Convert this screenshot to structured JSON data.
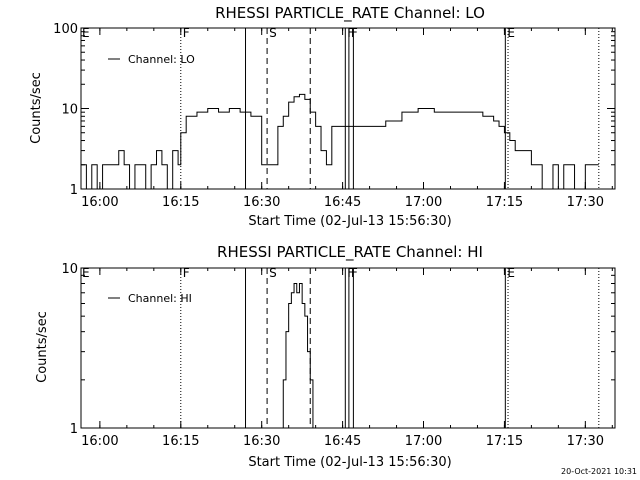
{
  "footer": {
    "timestamp": "20-Oct-2021 10:31"
  },
  "chart_data": [
    {
      "type": "line",
      "title": "RHESSI PARTICLE_RATE Channel: LO",
      "xlabel": "Start Time (02-Jul-13 15:56:30)",
      "ylabel": "Counts/sec",
      "yscale": "log",
      "ylim": [
        1,
        100
      ],
      "xlim": [
        "15:56:30",
        "17:35:30"
      ],
      "y_ticks": [
        "1",
        "10",
        "100"
      ],
      "x_ticks": [
        {
          "t": "16:00",
          "label": "16:00"
        },
        {
          "t": "16:15",
          "label": "16:15"
        },
        {
          "t": "16:30",
          "label": "16:30"
        },
        {
          "t": "16:45",
          "label": "16:45"
        },
        {
          "t": "17:00",
          "label": "17:00"
        },
        {
          "t": "17:15",
          "label": "17:15"
        },
        {
          "t": "17:30",
          "label": "17:30"
        }
      ],
      "legend": "top-left",
      "series": [
        {
          "name": "Channel: LO",
          "x": [
            "15:56:30",
            "15:57:30",
            "15:58:30",
            "15:59:30",
            "16:00:30",
            "16:01:30",
            "16:02:30",
            "16:03:30",
            "16:04:30",
            "16:05:30",
            "16:06:30",
            "16:07:30",
            "16:08:30",
            "16:09:30",
            "16:10:30",
            "16:11:30",
            "16:12:30",
            "16:13:30",
            "16:14:30",
            "16:15:00",
            "16:16:00",
            "16:18:00",
            "16:20:00",
            "16:22:00",
            "16:24:00",
            "16:26:00",
            "16:27:00",
            "16:28:00",
            "16:29:00",
            "16:30:00",
            "16:31:00",
            "16:32:00",
            "16:33:00",
            "16:34:00",
            "16:35:00",
            "16:36:00",
            "16:37:00",
            "16:38:00",
            "16:39:00",
            "16:40:00",
            "16:41:00",
            "16:42:00",
            "16:43:00",
            "16:45:00",
            "16:47:00",
            "16:50:00",
            "16:53:00",
            "16:56:00",
            "16:59:00",
            "17:02:00",
            "17:05:00",
            "17:08:00",
            "17:11:00",
            "17:13:00",
            "17:14:00",
            "17:15:00",
            "17:16:00",
            "17:17:00",
            "17:18:00",
            "17:19:00",
            "17:20:00",
            "17:21:00",
            "17:22:00",
            "17:23:00",
            "17:24:00",
            "17:25:00",
            "17:26:00",
            "17:27:00",
            "17:28:00",
            "17:29:00",
            "17:30:00",
            "17:31:00",
            "17:32:30"
          ],
          "y": [
            2,
            1,
            2,
            1,
            2,
            2,
            2,
            3,
            2,
            1,
            2,
            2,
            1,
            2,
            3,
            2,
            1,
            3,
            2,
            5,
            8,
            9,
            10,
            9,
            10,
            9,
            9,
            8,
            8,
            2,
            2,
            2,
            6,
            8,
            12,
            14,
            15,
            13,
            9,
            6,
            3,
            2,
            6,
            6,
            6,
            6,
            7,
            9,
            10,
            9,
            9,
            9,
            8,
            7,
            6,
            5,
            4,
            3,
            3,
            3,
            2,
            2,
            1,
            1,
            2,
            1,
            2,
            2,
            1,
            1,
            2,
            2,
            2
          ]
        }
      ],
      "markers": [
        {
          "t": "16:15:00",
          "style": "dotted",
          "label": "F"
        },
        {
          "t": "16:27:00",
          "style": "solid",
          "label": ""
        },
        {
          "t": "16:31:00",
          "style": "dashed",
          "label": "S"
        },
        {
          "t": "16:39:00",
          "style": "dashed",
          "label": ""
        },
        {
          "t": "16:45:30",
          "style": "solid",
          "label": "F"
        },
        {
          "t": "16:46:10",
          "style": "solid",
          "label": "F"
        },
        {
          "t": "16:47:00",
          "style": "solid",
          "label": ""
        },
        {
          "t": "17:15:10",
          "style": "solid",
          "label": "E"
        },
        {
          "t": "17:15:40",
          "style": "dotted",
          "label": ""
        },
        {
          "t": "17:32:30",
          "style": "dotted",
          "label": ""
        }
      ],
      "edge_labels": [
        {
          "label": "E",
          "side": "left"
        }
      ]
    },
    {
      "type": "line",
      "title": "RHESSI PARTICLE_RATE Channel: HI",
      "xlabel": "Start Time (02-Jul-13 15:56:30)",
      "ylabel": "Counts/sec",
      "yscale": "log",
      "ylim": [
        1,
        10
      ],
      "xlim": [
        "15:56:30",
        "17:35:30"
      ],
      "y_ticks": [
        "1",
        "10"
      ],
      "x_ticks": [
        {
          "t": "16:00",
          "label": "16:00"
        },
        {
          "t": "16:15",
          "label": "16:15"
        },
        {
          "t": "16:30",
          "label": "16:30"
        },
        {
          "t": "16:45",
          "label": "16:45"
        },
        {
          "t": "17:00",
          "label": "17:00"
        },
        {
          "t": "17:15",
          "label": "17:15"
        },
        {
          "t": "17:30",
          "label": "17:30"
        }
      ],
      "legend": "top-left",
      "series": [
        {
          "name": "Channel: HI",
          "x": [
            "16:33:30",
            "16:34:00",
            "16:34:30",
            "16:35:00",
            "16:35:30",
            "16:36:00",
            "16:36:30",
            "16:37:00",
            "16:37:30",
            "16:38:00",
            "16:38:30",
            "16:39:00",
            "16:39:30"
          ],
          "y": [
            1,
            2,
            4,
            6,
            7,
            8,
            7,
            8,
            6,
            5,
            3,
            2,
            1
          ]
        }
      ],
      "markers": [
        {
          "t": "16:15:00",
          "style": "dotted",
          "label": "F"
        },
        {
          "t": "16:27:00",
          "style": "solid",
          "label": ""
        },
        {
          "t": "16:31:00",
          "style": "dashed",
          "label": "S"
        },
        {
          "t": "16:39:00",
          "style": "dashed",
          "label": ""
        },
        {
          "t": "16:45:30",
          "style": "solid",
          "label": "F"
        },
        {
          "t": "16:46:10",
          "style": "solid",
          "label": "F"
        },
        {
          "t": "16:47:00",
          "style": "solid",
          "label": ""
        },
        {
          "t": "17:15:10",
          "style": "solid",
          "label": "E"
        },
        {
          "t": "17:15:40",
          "style": "dotted",
          "label": ""
        },
        {
          "t": "17:32:30",
          "style": "dotted",
          "label": ""
        }
      ],
      "edge_labels": [
        {
          "label": "E",
          "side": "left"
        }
      ]
    }
  ]
}
